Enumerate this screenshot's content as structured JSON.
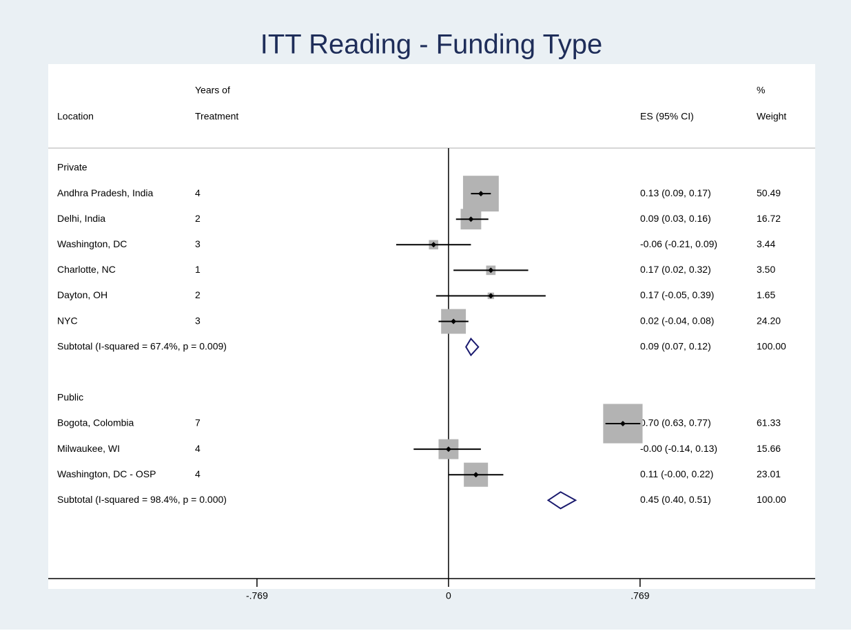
{
  "chart_data": {
    "type": "forest",
    "title": "ITT Reading - Funding Type",
    "headers": {
      "location": [
        "Location"
      ],
      "years": [
        "Years of",
        "Treatment"
      ],
      "es": [
        "ES (95% CI)"
      ],
      "weight": [
        "%",
        "Weight"
      ]
    },
    "groups": [
      {
        "name": "Private",
        "rows": [
          {
            "location": "Andhra Pradesh, India",
            "years": 4,
            "es": 0.13,
            "lo": 0.09,
            "hi": 0.17,
            "ci_label": "0.13 (0.09, 0.17)",
            "weight": 50.49
          },
          {
            "location": "Delhi, India",
            "years": 2,
            "es": 0.09,
            "lo": 0.03,
            "hi": 0.16,
            "ci_label": "0.09 (0.03, 0.16)",
            "weight": 16.72
          },
          {
            "location": "Washington, DC",
            "years": 3,
            "es": -0.06,
            "lo": -0.21,
            "hi": 0.09,
            "ci_label": "-0.06 (-0.21, 0.09)",
            "weight": 3.44
          },
          {
            "location": "Charlotte, NC",
            "years": 1,
            "es": 0.17,
            "lo": 0.02,
            "hi": 0.32,
            "ci_label": "0.17 (0.02, 0.32)",
            "weight": 3.5,
            "weight_label": "3.50"
          },
          {
            "location": "Dayton, OH",
            "years": 2,
            "es": 0.17,
            "lo": -0.05,
            "hi": 0.39,
            "ci_label": "0.17 (-0.05, 0.39)",
            "weight": 1.65
          },
          {
            "location": "NYC",
            "years": 3,
            "es": 0.02,
            "lo": -0.04,
            "hi": 0.08,
            "ci_label": "0.02 (-0.04, 0.08)",
            "weight": 24.2,
            "weight_label": "24.20"
          }
        ],
        "subtotal": {
          "label": "Subtotal  (I-squared = 67.4%, p = 0.009)",
          "es": 0.09,
          "lo": 0.07,
          "hi": 0.12,
          "ci_label": "0.09 (0.07, 0.12)",
          "weight": 100,
          "weight_label": "100.00"
        }
      },
      {
        "name": "Public",
        "rows": [
          {
            "location": "Bogota, Colombia",
            "years": 7,
            "es": 0.7,
            "lo": 0.63,
            "hi": 0.77,
            "ci_label": "0.70 (0.63, 0.77)",
            "weight": 61.33
          },
          {
            "location": "Milwaukee, WI",
            "years": 4,
            "es": -0.0,
            "lo": -0.14,
            "hi": 0.13,
            "ci_label": "-0.00 (-0.14, 0.13)",
            "weight": 15.66
          },
          {
            "location": "Washington, DC - OSP",
            "years": 4,
            "es": 0.11,
            "lo": -0.0,
            "hi": 0.22,
            "ci_label": "0.11 (-0.00, 0.22)",
            "weight": 23.01
          }
        ],
        "subtotal": {
          "label": "Subtotal  (I-squared = 98.4%, p = 0.000)",
          "es": 0.45,
          "lo": 0.4,
          "hi": 0.51,
          "ci_label": "0.45 (0.40, 0.51)",
          "weight": 100,
          "weight_label": "100.00"
        }
      }
    ],
    "xlim": [
      -1.607,
      1.472
    ],
    "xticks": [
      {
        "value": -0.769,
        "label": "-.769"
      },
      0,
      {
        "value": 0.769,
        "label": ".769"
      }
    ],
    "box_color": "#b3b3b3",
    "diamond_color": "#1a1a6e"
  }
}
